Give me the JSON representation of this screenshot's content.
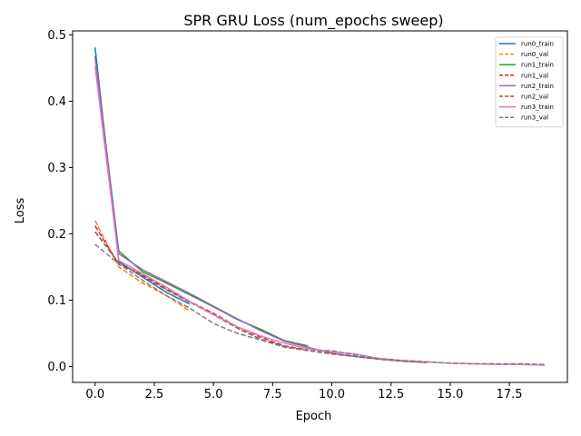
{
  "chart_data": {
    "type": "line",
    "title": "SPR GRU Loss (num_epochs sweep)",
    "xlabel": "Epoch",
    "ylabel": "Loss",
    "xlim": [
      -0.95,
      19.95
    ],
    "ylim": [
      -0.024,
      0.506
    ],
    "xticks": [
      0.0,
      2.5,
      5.0,
      7.5,
      10.0,
      12.5,
      15.0,
      17.5
    ],
    "xtick_labels": [
      "0.0",
      "2.5",
      "5.0",
      "7.5",
      "10.0",
      "12.5",
      "15.0",
      "17.5"
    ],
    "yticks": [
      0.0,
      0.1,
      0.2,
      0.3,
      0.4,
      0.5
    ],
    "ytick_labels": [
      "0.0",
      "0.1",
      "0.2",
      "0.3",
      "0.4",
      "0.5"
    ],
    "grid": false,
    "legend_position": "top-right",
    "series": [
      {
        "name": "run0_train",
        "color": "#1f77b4",
        "dash": "solid",
        "x": [
          0,
          1,
          2,
          3,
          4
        ],
        "y": [
          0.481,
          0.158,
          0.135,
          0.112,
          0.094
        ]
      },
      {
        "name": "run0_val",
        "color": "#ff7f0e",
        "dash": "dashed",
        "x": [
          0,
          1,
          2,
          3,
          4
        ],
        "y": [
          0.22,
          0.15,
          0.126,
          0.107,
          0.084
        ]
      },
      {
        "name": "run1_train",
        "color": "#2ca02c",
        "dash": "solid",
        "x": [
          0,
          1,
          2,
          3,
          4,
          5,
          6,
          7,
          8,
          9
        ],
        "y": [
          0.468,
          0.174,
          0.143,
          0.126,
          0.108,
          0.09,
          0.071,
          0.056,
          0.039,
          0.031
        ]
      },
      {
        "name": "run1_val",
        "color": "#d62728",
        "dash": "dashed",
        "x": [
          0,
          1,
          2,
          3,
          4,
          5,
          6,
          7,
          8,
          9
        ],
        "y": [
          0.212,
          0.154,
          0.139,
          0.117,
          0.098,
          0.08,
          0.06,
          0.044,
          0.031,
          0.025
        ]
      },
      {
        "name": "run2_train",
        "color": "#9467bd",
        "dash": "solid",
        "x": [
          0,
          1,
          2,
          3,
          4,
          5,
          6,
          7,
          8,
          9,
          10,
          11,
          12,
          13,
          14
        ],
        "y": [
          0.466,
          0.17,
          0.146,
          0.128,
          0.11,
          0.091,
          0.072,
          0.054,
          0.038,
          0.029,
          0.02,
          0.015,
          0.011,
          0.008,
          0.006
        ]
      },
      {
        "name": "run2_val",
        "color": "#8c564b",
        "dash": "dashed",
        "x": [
          0,
          1,
          2,
          3,
          4,
          5,
          6,
          7,
          8,
          9,
          10,
          11,
          12,
          13,
          14
        ],
        "y": [
          0.203,
          0.156,
          0.137,
          0.116,
          0.097,
          0.078,
          0.058,
          0.041,
          0.03,
          0.024,
          0.019,
          0.015,
          0.011,
          0.008,
          0.006
        ]
      },
      {
        "name": "run3_train",
        "color": "#e377c2",
        "dash": "solid",
        "x": [
          0,
          1,
          2,
          3,
          4,
          5,
          6,
          7,
          8,
          9,
          10,
          11,
          12,
          13,
          14,
          15,
          16,
          17,
          18,
          19
        ],
        "y": [
          0.452,
          0.16,
          0.14,
          0.12,
          0.098,
          0.078,
          0.06,
          0.046,
          0.035,
          0.027,
          0.022,
          0.019,
          0.012,
          0.009,
          0.007,
          0.005,
          0.004,
          0.003,
          0.003,
          0.002
        ]
      },
      {
        "name": "run3_val",
        "color": "#7f7f7f",
        "dash": "dashed",
        "x": [
          0,
          1,
          2,
          3,
          4,
          5,
          6,
          7,
          8,
          9,
          10,
          11,
          12,
          13,
          14,
          15,
          16,
          17,
          18,
          19
        ],
        "y": [
          0.184,
          0.155,
          0.13,
          0.107,
          0.088,
          0.065,
          0.05,
          0.04,
          0.029,
          0.024,
          0.024,
          0.017,
          0.012,
          0.009,
          0.007,
          0.005,
          0.004,
          0.004,
          0.004,
          0.003
        ]
      }
    ]
  }
}
